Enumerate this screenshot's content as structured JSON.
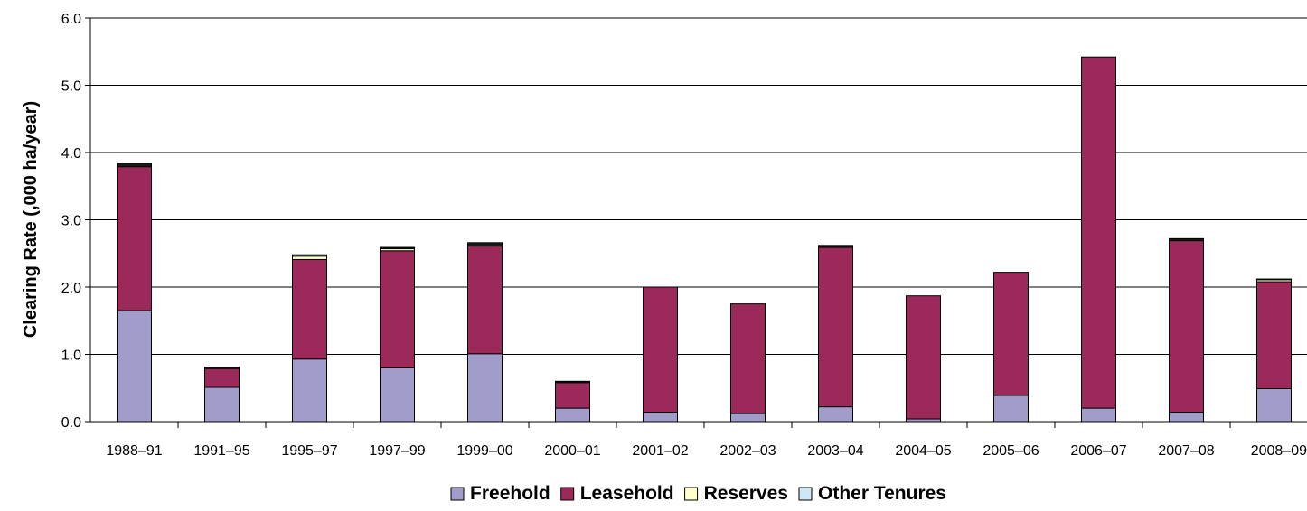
{
  "chart_data": {
    "type": "bar",
    "stacked": true,
    "ylabel": "Clearing Rate (,000 ha/year)",
    "xlabel": "",
    "ylim": [
      0,
      6
    ],
    "yticks": [
      "0.0",
      "1.0",
      "2.0",
      "3.0",
      "4.0",
      "5.0",
      "6.0"
    ],
    "grid": true,
    "legend_position": "bottom",
    "categories": [
      "1988–91",
      "1991–95",
      "1995–97",
      "1997–99",
      "1999–00",
      "2000–01",
      "2001–02",
      "2002–03",
      "2003–04",
      "2004–05",
      "2005–06",
      "2006–07",
      "2007–08",
      "2008–09"
    ],
    "series": [
      {
        "name": "Freehold",
        "color": "#a09dcb",
        "values": [
          1.65,
          0.51,
          0.93,
          0.8,
          1.01,
          0.2,
          0.14,
          0.12,
          0.22,
          0.04,
          0.39,
          0.2,
          0.14,
          0.49
        ]
      },
      {
        "name": "Leasehold",
        "color": "#9b2a5a",
        "values": [
          2.14,
          0.28,
          1.48,
          1.74,
          1.6,
          0.38,
          1.86,
          1.63,
          2.37,
          1.83,
          1.83,
          5.22,
          2.55,
          1.59
        ]
      },
      {
        "name": "Reserves",
        "color": "#ffffcc",
        "values": [
          0.0,
          0.0,
          0.05,
          0.03,
          0.0,
          0.0,
          0.0,
          0.0,
          0.0,
          0.0,
          0.0,
          0.0,
          0.0,
          0.03
        ]
      },
      {
        "name": "Other Tenures",
        "color": "#cce8f4",
        "values": [
          0.0,
          0.0,
          0.02,
          0.0,
          0.0,
          0.0,
          0.0,
          0.0,
          0.0,
          0.0,
          0.0,
          0.0,
          0.0,
          0.01
        ]
      },
      {
        "name": "",
        "color": "#1a1a1a",
        "values": [
          0.05,
          0.02,
          0.0,
          0.02,
          0.05,
          0.02,
          0.0,
          0.0,
          0.03,
          0.0,
          0.0,
          0.0,
          0.03,
          0.0
        ]
      }
    ]
  }
}
